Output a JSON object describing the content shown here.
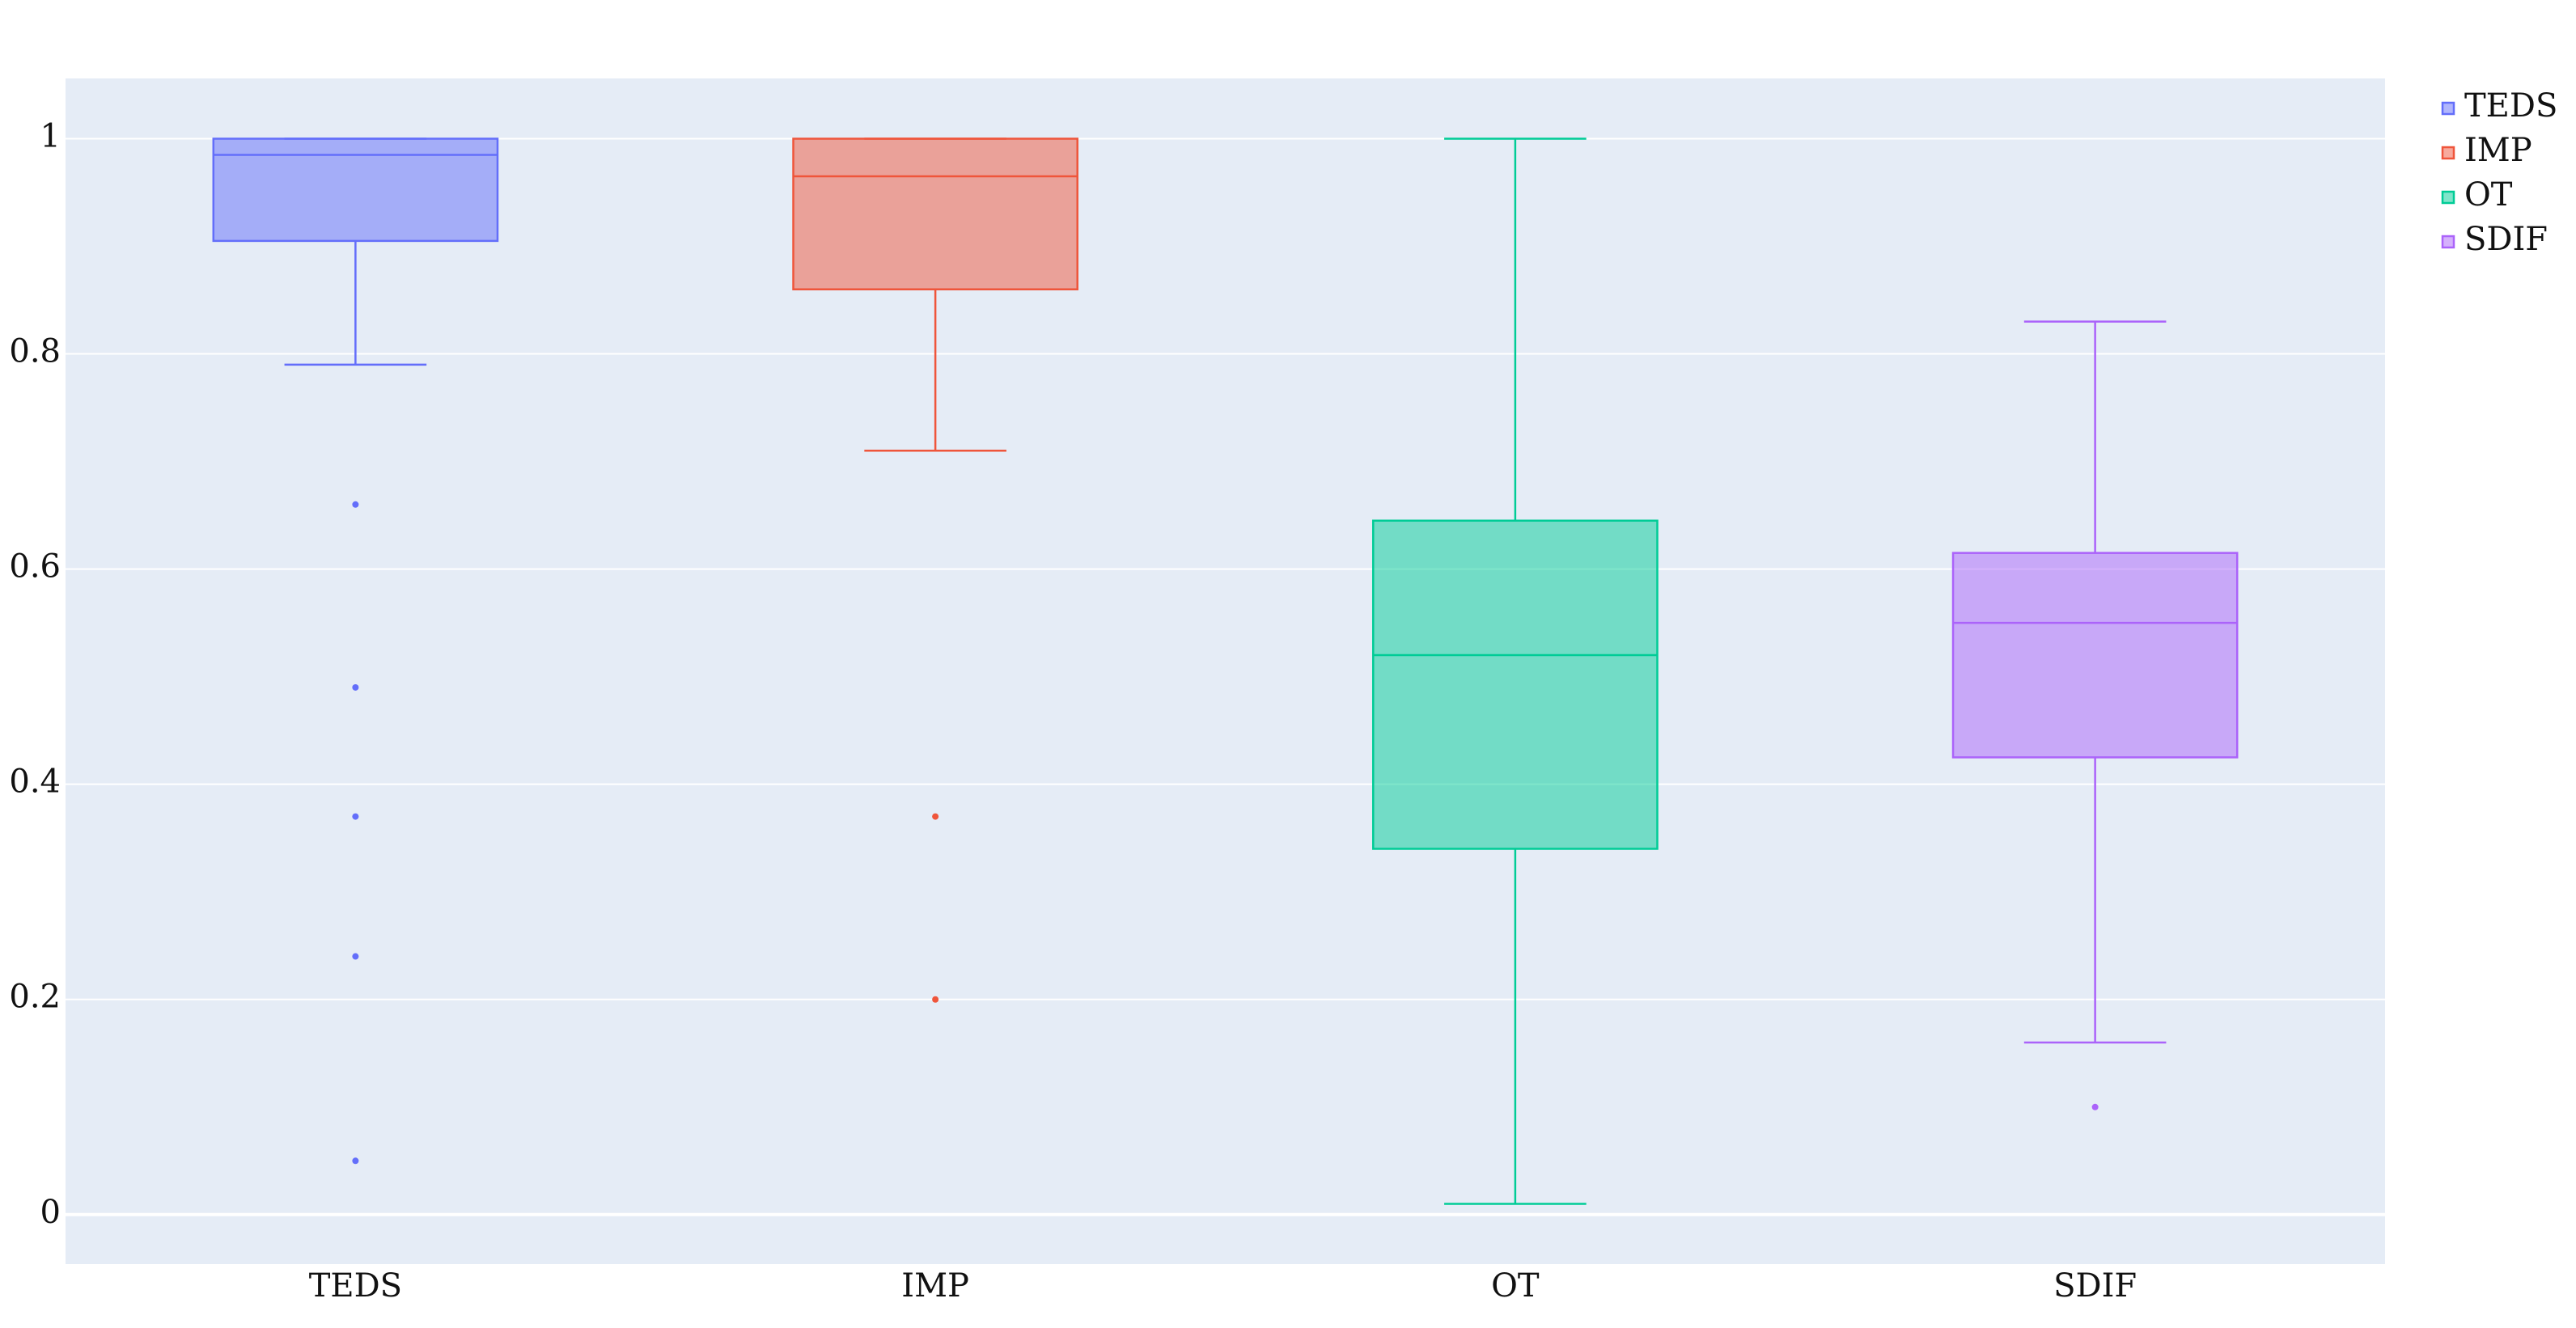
{
  "chart_data": {
    "type": "box",
    "series": [
      {
        "name": "TEDS",
        "color": "#636efa",
        "q1": 0.905,
        "median": 0.985,
        "q3": 1.0,
        "lower_fence": 0.79,
        "upper_fence": 1.0,
        "outliers": [
          0.66,
          0.49,
          0.37,
          0.24,
          0.05
        ]
      },
      {
        "name": "IMP",
        "color": "#ef553b",
        "q1": 0.86,
        "median": 0.965,
        "q3": 1.0,
        "lower_fence": 0.71,
        "upper_fence": 1.0,
        "outliers": [
          0.37,
          0.2
        ]
      },
      {
        "name": "OT",
        "color": "#00cc96",
        "q1": 0.34,
        "median": 0.52,
        "q3": 0.645,
        "lower_fence": 0.01,
        "upper_fence": 1.0,
        "outliers": []
      },
      {
        "name": "SDIF",
        "color": "#ab63fa",
        "q1": 0.425,
        "median": 0.55,
        "q3": 0.615,
        "lower_fence": 0.16,
        "upper_fence": 0.83,
        "outliers": [
          0.1
        ]
      }
    ],
    "ylim": [
      -0.046,
      1.056
    ],
    "yticks": [
      0,
      0.2,
      0.4,
      0.6,
      0.8,
      1
    ],
    "grid": true,
    "legend": "top-right"
  }
}
